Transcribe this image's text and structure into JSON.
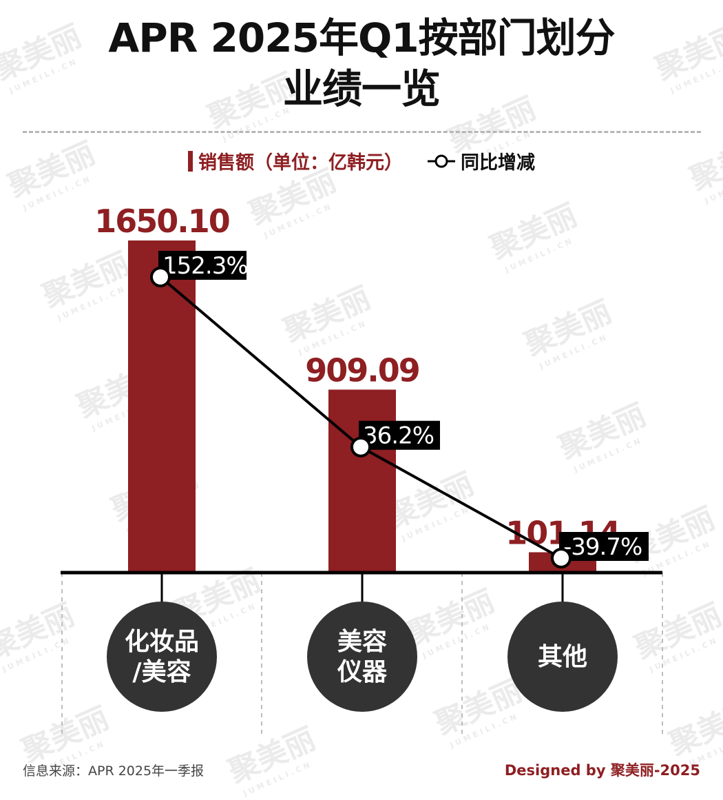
{
  "title": {
    "line1": "APR 2025年Q1按部门划分",
    "line2": "业绩一览"
  },
  "legend": {
    "bar_label": "销售额（单位：亿韩元）",
    "line_label": "同比增减"
  },
  "colors": {
    "bar": "#8e1f22",
    "line": "#000000",
    "category_circle": "#333333",
    "text_dark": "#111111"
  },
  "chart_data": {
    "type": "bar",
    "categories": [
      "化妆品/美容",
      "美容仪器",
      "其他"
    ],
    "category_display": [
      [
        "化妆品",
        "/美容"
      ],
      [
        "美容",
        "仪器"
      ],
      [
        "其他"
      ]
    ],
    "series": [
      {
        "name": "销售额（单位：亿韩元）",
        "type": "bar",
        "values": [
          1650.1,
          909.09,
          101.14
        ],
        "labels": [
          "1650.10",
          "909.09",
          "101.14"
        ]
      },
      {
        "name": "同比增减",
        "type": "line",
        "values": [
          152.3,
          36.2,
          -39.7
        ],
        "labels": [
          "152.3%",
          "36.2%",
          "-39.7%"
        ]
      }
    ],
    "ylim": [
      0,
      1650.1
    ],
    "xlabel": "",
    "ylabel": "",
    "grid": false,
    "legend_position": "top-center"
  },
  "footer": {
    "source": "信息来源：APR 2025年一季报",
    "credit": "Designed by 聚美丽-2025"
  },
  "watermark": {
    "text": "聚美丽",
    "subtext": "JUMEILI.CN"
  }
}
